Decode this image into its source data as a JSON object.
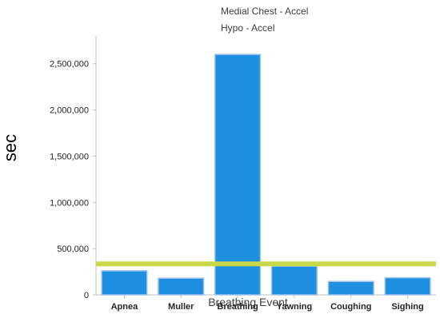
{
  "chart_data": {
    "type": "bar",
    "categories": [
      "Apnea",
      "Muller",
      "Breathing",
      "Yawning",
      "Coughing",
      "Sighing"
    ],
    "series": [
      {
        "name": "Medial Chest - Accel",
        "values": [
          260000,
          180000,
          2600000,
          310000,
          145000,
          185000
        ],
        "color": "#1E8FE1"
      }
    ],
    "threshold": {
      "name": "Hypo - Accel",
      "value": 335000,
      "color": "#C8D84A"
    },
    "legend_entries": [
      "Medial Chest - Accel",
      "Hypo - Accel"
    ],
    "legend_placement": "top-center",
    "yticks": [
      0,
      500000,
      1000000,
      1500000,
      2000000,
      2500000
    ],
    "ytick_labels": [
      "0",
      "500,000",
      "1,000,000",
      "1,500,000",
      "2,000,000",
      "2,500,000"
    ],
    "ylim": [
      0,
      2800000
    ],
    "xlabel": "Breathing Event",
    "ylabel": "sec",
    "grid": false,
    "colors": {
      "bar_edge": "#9CC3EA",
      "axis": "#BFBFBF"
    }
  }
}
